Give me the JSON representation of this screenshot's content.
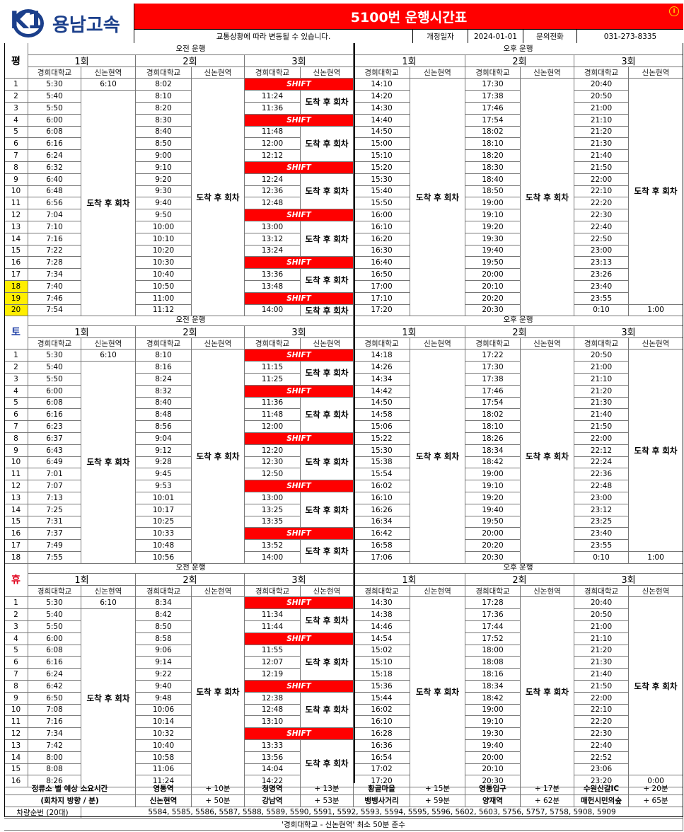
{
  "brand": {
    "logo_text": "K1",
    "name": "용남고속"
  },
  "title": "5100번 운행시간표",
  "subheader": {
    "notice": "교통상황에 따라 변동될 수 있습니다.",
    "revised_label": "개정일자",
    "revised_date": "2024-01-01",
    "phone_label": "문의전화",
    "phone": "031-273-8335"
  },
  "labels": {
    "morning": "오전 운행",
    "afternoon": "오후 운행",
    "round1": "1회",
    "round2": "2회",
    "round3": "3회",
    "stop_a": "경희대학교",
    "stop_b": "신논현역",
    "shift": "SHIFT",
    "turnaround": "도착 후 회차"
  },
  "sections": [
    {
      "day": "평",
      "color": "#000000",
      "highlight_rows": [
        18,
        19,
        20
      ],
      "am1": [
        "5:30",
        "5:40",
        "5:50",
        "6:00",
        "6:08",
        "6:16",
        "6:24",
        "6:32",
        "6:40",
        "6:48",
        "6:56",
        "7:04",
        "7:10",
        "7:16",
        "7:22",
        "7:28",
        "7:34",
        "7:40",
        "7:46",
        "7:54"
      ],
      "am1b": "6:10",
      "am2": [
        "8:02",
        "8:10",
        "8:20",
        "8:30",
        "8:40",
        "8:50",
        "9:00",
        "9:10",
        "9:20",
        "9:30",
        "9:40",
        "9:50",
        "10:00",
        "10:10",
        "10:20",
        "10:30",
        "10:40",
        "10:50",
        "11:00",
        "11:12"
      ],
      "am3": [
        "SHIFT",
        "11:24",
        "11:36",
        "SHIFT",
        "11:48",
        "12:00",
        "12:12",
        "SHIFT",
        "12:24",
        "12:36",
        "12:48",
        "SHIFT",
        "13:00",
        "13:12",
        "13:24",
        "SHIFT",
        "13:36",
        "13:48",
        "SHIFT",
        "14:00"
      ],
      "pm1": [
        "14:10",
        "14:20",
        "14:30",
        "14:40",
        "14:50",
        "15:00",
        "15:10",
        "15:20",
        "15:30",
        "15:40",
        "15:50",
        "16:00",
        "16:10",
        "16:20",
        "16:30",
        "16:40",
        "16:50",
        "17:00",
        "17:10",
        "17:20"
      ],
      "pm2": [
        "17:30",
        "17:38",
        "17:46",
        "17:54",
        "18:02",
        "18:10",
        "18:20",
        "18:30",
        "18:40",
        "18:50",
        "19:00",
        "19:10",
        "19:20",
        "19:30",
        "19:40",
        "19:50",
        "20:00",
        "20:10",
        "20:20",
        "20:30"
      ],
      "pm3": [
        "20:40",
        "20:50",
        "21:00",
        "21:10",
        "21:20",
        "21:30",
        "21:40",
        "21:50",
        "22:00",
        "22:10",
        "22:20",
        "22:30",
        "22:40",
        "22:50",
        "23:00",
        "23:13",
        "23:26",
        "23:40",
        "23:55",
        "0:10"
      ],
      "pm3b": "1:00"
    },
    {
      "day": "토",
      "color": "#1f3fa6",
      "highlight_rows": [],
      "am1": [
        "5:30",
        "5:40",
        "5:50",
        "6:00",
        "6:08",
        "6:16",
        "6:23",
        "6:37",
        "6:43",
        "6:49",
        "7:01",
        "7:07",
        "7:13",
        "7:25",
        "7:31",
        "7:37",
        "7:49",
        "7:55"
      ],
      "am1b": "6:10",
      "am2": [
        "8:10",
        "8:16",
        "8:24",
        "8:32",
        "8:40",
        "8:48",
        "8:56",
        "9:04",
        "9:12",
        "9:28",
        "9:45",
        "9:53",
        "10:01",
        "10:17",
        "10:25",
        "10:33",
        "10:48",
        "10:56"
      ],
      "am3": [
        "SHIFT",
        "11:15",
        "11:25",
        "SHIFT",
        "11:36",
        "11:48",
        "12:00",
        "SHIFT",
        "12:20",
        "12:30",
        "12:50",
        "SHIFT",
        "13:00",
        "13:25",
        "13:35",
        "SHIFT",
        "13:52",
        "14:00"
      ],
      "pm1": [
        "14:18",
        "14:26",
        "14:34",
        "14:42",
        "14:50",
        "14:58",
        "15:06",
        "15:22",
        "15:30",
        "15:38",
        "15:54",
        "16:02",
        "16:10",
        "16:26",
        "16:34",
        "16:42",
        "16:58",
        "17:06"
      ],
      "pm2": [
        "17:22",
        "17:30",
        "17:38",
        "17:46",
        "17:54",
        "18:02",
        "18:10",
        "18:26",
        "18:34",
        "18:42",
        "19:00",
        "19:10",
        "19:20",
        "19:40",
        "19:50",
        "20:00",
        "20:20",
        "20:30"
      ],
      "pm3": [
        "20:50",
        "21:00",
        "21:10",
        "21:20",
        "21:30",
        "21:40",
        "21:50",
        "22:00",
        "22:12",
        "22:24",
        "22:36",
        "22:48",
        "23:00",
        "23:12",
        "23:25",
        "23:40",
        "23:55",
        "0:10"
      ],
      "pm3b": "1:00"
    },
    {
      "day": "휴",
      "color": "#e0001b",
      "highlight_rows": [],
      "am1": [
        "5:30",
        "5:40",
        "5:50",
        "6:00",
        "6:08",
        "6:16",
        "6:24",
        "6:42",
        "6:50",
        "7:08",
        "7:16",
        "7:34",
        "7:42",
        "8:00",
        "8:08",
        "8:26"
      ],
      "am1b": "6:10",
      "am2": [
        "8:34",
        "8:42",
        "8:50",
        "8:58",
        "9:06",
        "9:14",
        "9:22",
        "9:40",
        "9:48",
        "10:06",
        "10:14",
        "10:32",
        "10:40",
        "10:58",
        "11:06",
        "11:24"
      ],
      "am3": [
        "SHIFT",
        "11:34",
        "11:44",
        "SHIFT",
        "11:55",
        "12:07",
        "12:19",
        "SHIFT",
        "12:38",
        "12:48",
        "13:10",
        "SHIFT",
        "13:33",
        "13:56",
        "14:04",
        "14:22"
      ],
      "pm1": [
        "14:30",
        "14:38",
        "14:46",
        "14:54",
        "15:02",
        "15:10",
        "15:18",
        "15:36",
        "15:44",
        "16:02",
        "16:10",
        "16:28",
        "16:36",
        "16:54",
        "17:02",
        "17:20"
      ],
      "pm2": [
        "17:28",
        "17:36",
        "17:44",
        "17:52",
        "18:00",
        "18:08",
        "18:16",
        "18:34",
        "18:42",
        "19:00",
        "19:10",
        "19:30",
        "19:40",
        "20:00",
        "20:10",
        "20:30"
      ],
      "pm3": [
        "20:40",
        "20:50",
        "21:00",
        "21:10",
        "21:20",
        "21:30",
        "21:40",
        "21:50",
        "22:00",
        "22:10",
        "22:20",
        "22:30",
        "22:40",
        "22:52",
        "23:06",
        "23:20"
      ],
      "pm3b": "0:00"
    }
  ],
  "footer": {
    "label1": "정류소 별 예상 소요시간",
    "label2": "(회차지 방향 / 분)",
    "row1": [
      [
        "영통역",
        "+ 10분"
      ],
      [
        "청명역",
        "+ 13분"
      ],
      [
        "황골마을",
        "+ 15분"
      ],
      [
        "영통입구",
        "+ 17분"
      ],
      [
        "수원신갈IC",
        "+ 20분"
      ]
    ],
    "row2": [
      [
        "신논현역",
        "+ 50분"
      ],
      [
        "강남역",
        "+ 53분"
      ],
      [
        "뱅뱅사거리",
        "+ 59분"
      ],
      [
        "양재역",
        "+ 62분"
      ],
      [
        "매헌시민의숲",
        "+ 65분"
      ]
    ],
    "vehicle_label": "차량순번 (20대)",
    "vehicles": "5584, 5585, 5586, 5587, 5588, 5589, 5590, 5591, 5592, 5593, 5594, 5595, 5596, 5602, 5603, 5756, 5757, 5758, 5908, 5909",
    "note": "'경희대학교 - 신논현역' 최소 50분 준수"
  },
  "colors": {
    "red": "#ff0000",
    "navy": "#1b3f8b",
    "highlight": "#ffee00"
  }
}
